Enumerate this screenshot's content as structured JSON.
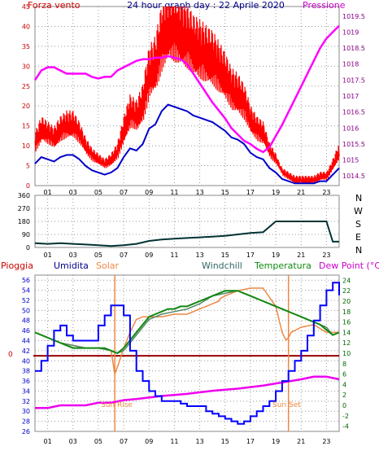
{
  "header": {
    "left_label": "Forza vento",
    "title": "24 hour graph day : 22 Aprile 2020",
    "right_label": "Pressione"
  },
  "colors": {
    "wind": "#ff0000",
    "gust_base": "#0000cc",
    "pressure": "#ff00ff",
    "direction": "#003333",
    "humidity": "#0000ff",
    "solar": "#ee8844",
    "windchill": "#558866",
    "temperature": "#118811",
    "dewpoint": "#ee00ee",
    "rain_line": "#990000",
    "frame": "#888888",
    "grid": "#999999",
    "title": "#000088",
    "left_axis": "#cc0000",
    "humidity_axis": "#0000cc",
    "temp_axis": "#006600",
    "pressure_axis": "#880088"
  },
  "panel2_labels": [
    "N",
    "W",
    "S",
    "E",
    "N"
  ],
  "panel3": {
    "legend": {
      "pioggia": "Pioggia",
      "umidita": "Umidita",
      "solar": "Solar",
      "windchill": "Windchill",
      "temperatura": "Temperatura",
      "dewpoint": "Dew Point (°C)"
    },
    "sun_rise": "Sun Rise",
    "sun_set": "Sun Set",
    "rain_zero_label": "0"
  },
  "chart_data": [
    {
      "type": "line",
      "title": "24 hour graph day : 22 Aprile 2020",
      "x_ticks": [
        "01",
        "03",
        "05",
        "07",
        "09",
        "11",
        "13",
        "15",
        "17",
        "19",
        "21",
        "23"
      ],
      "xlim": [
        0,
        24
      ],
      "y_left_ticks": [
        0,
        5,
        10,
        15,
        20,
        25,
        30,
        35,
        40,
        45
      ],
      "ylim_left": [
        0,
        45
      ],
      "y_right_ticks": [
        1014.5,
        1015,
        1015.5,
        1016,
        1016.5,
        1017,
        1017.5,
        1018,
        1018.5,
        1019,
        1019.5
      ],
      "ylim_right": [
        1014.2,
        1019.8
      ],
      "grid": true,
      "series": [
        {
          "name": "Forza vento",
          "axis": "left",
          "x": [
            0,
            0.5,
            1,
            1.5,
            2,
            2.5,
            3,
            3.5,
            4,
            4.5,
            5,
            5.5,
            6,
            6.5,
            7,
            7.5,
            8,
            8.5,
            9,
            9.5,
            10,
            10.5,
            11,
            11.5,
            12,
            12.5,
            13,
            13.5,
            14,
            14.5,
            15,
            15.5,
            16,
            16.5,
            17,
            17.5,
            18,
            18.5,
            19,
            19.5,
            20,
            20.5,
            21,
            21.5,
            22,
            22.5,
            23,
            23.5,
            24
          ],
          "y": [
            10,
            13,
            12,
            11,
            13,
            14,
            14,
            12,
            9,
            7,
            6,
            5,
            6,
            8,
            13,
            17,
            16,
            19,
            26,
            28,
            34,
            37,
            36,
            35,
            34,
            32,
            31,
            30,
            29,
            27,
            25,
            22,
            21,
            19,
            15,
            13,
            12,
            8,
            6,
            3,
            2,
            1,
            1,
            1,
            1,
            2,
            2,
            5,
            8
          ]
        },
        {
          "name": "Pressione",
          "axis": "right",
          "x": [
            0,
            0.5,
            1,
            1.5,
            2,
            2.5,
            3,
            3.5,
            4,
            4.5,
            5,
            5.5,
            6,
            6.5,
            7,
            7.5,
            8,
            8.5,
            9,
            9.5,
            10,
            10.5,
            11,
            11.5,
            12,
            12.5,
            13,
            13.5,
            14,
            14.5,
            15,
            15.5,
            16,
            16.5,
            17,
            17.5,
            18,
            18.5,
            19,
            19.5,
            20,
            20.5,
            21,
            21.5,
            22,
            22.5,
            23,
            23.5,
            24
          ],
          "y": [
            1017.5,
            1017.8,
            1017.9,
            1017.9,
            1017.8,
            1017.7,
            1017.7,
            1017.7,
            1017.7,
            1017.6,
            1017.55,
            1017.6,
            1017.6,
            1017.8,
            1017.9,
            1018.0,
            1018.1,
            1018.15,
            1018.15,
            1018.2,
            1018.2,
            1018.25,
            1018.2,
            1018.15,
            1018.0,
            1017.7,
            1017.4,
            1017.1,
            1016.8,
            1016.55,
            1016.3,
            1016.0,
            1015.8,
            1015.6,
            1015.5,
            1015.35,
            1015.25,
            1015.4,
            1015.75,
            1016.1,
            1016.5,
            1016.9,
            1017.3,
            1017.7,
            1018.1,
            1018.5,
            1018.8,
            1019.0,
            1019.2
          ]
        }
      ]
    },
    {
      "type": "line",
      "x_ticks": [
        "01",
        "03",
        "05",
        "07",
        "09",
        "11",
        "13",
        "15",
        "17",
        "19",
        "21",
        "23"
      ],
      "xlim": [
        0,
        24
      ],
      "y_left_ticks": [
        0,
        90,
        180,
        270,
        360
      ],
      "ylim": [
        0,
        360
      ],
      "grid": true,
      "series": [
        {
          "name": "Direzione",
          "x": [
            0,
            1,
            2,
            3,
            4,
            5,
            6,
            7,
            8,
            9,
            10,
            11,
            12,
            13,
            14,
            15,
            16,
            17,
            18,
            19,
            20,
            21,
            22,
            23,
            23.5,
            24
          ],
          "y": [
            30,
            25,
            30,
            25,
            20,
            15,
            10,
            15,
            25,
            45,
            55,
            60,
            65,
            70,
            75,
            80,
            90,
            100,
            105,
            180,
            180,
            180,
            180,
            180,
            40,
            40
          ]
        }
      ]
    },
    {
      "type": "line",
      "x_ticks": [
        "01",
        "03",
        "05",
        "07",
        "09",
        "11",
        "13",
        "15",
        "17",
        "19",
        "21",
        "23"
      ],
      "xlim": [
        0,
        24
      ],
      "y_left_ticks": [
        26,
        28,
        30,
        32,
        34,
        36,
        38,
        40,
        42,
        44,
        46,
        48,
        50,
        52,
        54,
        56
      ],
      "ylim_left": [
        26,
        57
      ],
      "y_right_ticks": [
        -4,
        -2,
        0,
        2,
        4,
        6,
        8,
        10,
        12,
        14,
        16,
        18,
        20,
        22,
        24
      ],
      "ylim_right": [
        -5,
        25
      ],
      "grid": true,
      "series": [
        {
          "name": "Umidita",
          "axis": "left",
          "x": [
            0,
            0.5,
            1,
            1.5,
            2,
            2.5,
            3,
            3.5,
            4,
            4.5,
            5,
            5.5,
            6,
            6.5,
            7,
            7.5,
            8,
            8.5,
            9,
            9.5,
            10,
            10.5,
            11,
            11.5,
            12,
            12.5,
            13,
            13.5,
            14,
            14.5,
            15,
            15.5,
            16,
            16.5,
            17,
            17.5,
            18,
            18.5,
            19,
            19.5,
            20,
            20.5,
            21,
            21.5,
            22,
            22.5,
            23,
            23.5,
            24
          ],
          "y": [
            38,
            40,
            43,
            46,
            47,
            45,
            44,
            44,
            44,
            44,
            47,
            49,
            51,
            51,
            49,
            42,
            38,
            36,
            34,
            33,
            32,
            32,
            32,
            31.5,
            31,
            31,
            31,
            30,
            29.5,
            29,
            28.5,
            28,
            27.5,
            28,
            29,
            30,
            31,
            32,
            34,
            36,
            38,
            40,
            42,
            45,
            48,
            51,
            54,
            55.5,
            53
          ]
        },
        {
          "name": "Temperatura",
          "axis": "right",
          "x": [
            0,
            0.5,
            1,
            1.5,
            2,
            2.5,
            3,
            3.5,
            4,
            4.5,
            5,
            5.5,
            6,
            6.5,
            7,
            7.5,
            8,
            8.5,
            9,
            9.5,
            10,
            10.5,
            11,
            11.5,
            12,
            12.5,
            13,
            13.5,
            14,
            14.5,
            15,
            15.5,
            16,
            16.5,
            17,
            17.5,
            18,
            18.5,
            19,
            19.5,
            20,
            20.5,
            21,
            21.5,
            22,
            22.5,
            23,
            23.5,
            24
          ],
          "y": [
            14,
            13.5,
            13,
            12.5,
            12,
            11.5,
            11,
            11,
            11,
            11,
            11,
            11,
            10.5,
            10,
            11,
            12.5,
            14,
            15.5,
            17,
            17.5,
            18,
            18.5,
            18.5,
            19,
            19,
            19.5,
            20,
            20.5,
            21,
            21.5,
            22,
            22,
            22,
            21.5,
            21,
            20.5,
            20,
            19.5,
            19,
            18.5,
            18,
            17.5,
            17,
            16.5,
            16,
            15.5,
            14.5,
            13.5,
            14
          ]
        },
        {
          "name": "Windchill",
          "axis": "right",
          "x": [
            0,
            1,
            2,
            3,
            4,
            5,
            6,
            6.5,
            7,
            7.5,
            8,
            8.5,
            9,
            10,
            11,
            12,
            13,
            14,
            15,
            16,
            17,
            18,
            19,
            20,
            21,
            22,
            23,
            23.5,
            24
          ],
          "y": [
            14,
            13,
            12,
            11.5,
            11,
            11,
            10.5,
            10,
            10.5,
            12,
            13.5,
            15,
            16.5,
            17.5,
            18,
            18.5,
            19.5,
            21,
            21.5,
            22,
            21,
            20,
            19,
            18,
            17,
            16,
            15,
            13.5,
            14
          ]
        },
        {
          "name": "Solar",
          "axis": "right",
          "x": [
            0,
            1,
            2,
            3,
            4,
            5,
            6,
            6.3,
            6.6,
            7,
            7.5,
            8,
            8.5,
            9,
            10,
            11,
            12,
            13,
            14,
            14.5,
            14.6,
            15,
            16,
            17,
            18,
            19,
            19.5,
            19.8,
            20,
            20.2,
            21,
            22,
            23,
            24
          ],
          "y": [
            14,
            13,
            12,
            11.5,
            11,
            11,
            10.5,
            6,
            8,
            11,
            14,
            16.5,
            17,
            17,
            17,
            17.5,
            17.5,
            18.5,
            19.5,
            20,
            20.5,
            21,
            22,
            22.5,
            22.5,
            19,
            14,
            12.5,
            13,
            14,
            15,
            15.5,
            14,
            14
          ]
        },
        {
          "name": "Dew Point (°C)",
          "axis": "right",
          "x": [
            0,
            1,
            2,
            3,
            4,
            5,
            6,
            7,
            8,
            9,
            10,
            11,
            12,
            13,
            14,
            15,
            16,
            17,
            18,
            19,
            20,
            21,
            22,
            23,
            24
          ],
          "y": [
            -0.5,
            -0.5,
            0,
            0,
            0,
            0.5,
            0.5,
            1,
            1.2,
            1.5,
            1.8,
            2,
            2.2,
            2.5,
            2.8,
            3,
            3.2,
            3.5,
            3.8,
            4.2,
            4.6,
            5,
            5.5,
            5.5,
            5
          ]
        },
        {
          "name": "Pioggia",
          "axis": "rain",
          "x": [
            0,
            24
          ],
          "y": [
            0,
            0
          ]
        }
      ],
      "annotations": [
        {
          "text": "Sun Rise",
          "x": 6.3
        },
        {
          "text": "Sun Set",
          "x": 20.0
        }
      ]
    }
  ]
}
